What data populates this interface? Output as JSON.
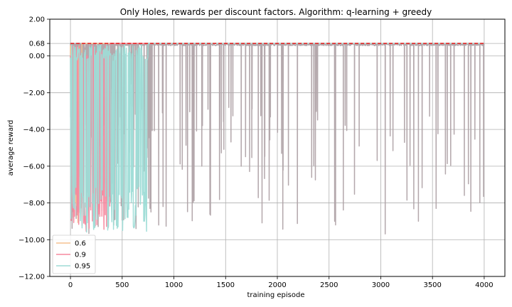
{
  "chart_data": {
    "type": "line",
    "title": "Only Holes, rewards per discount factors. Algorithm: q-learning + greedy",
    "xlabel": "training episode",
    "ylabel": "average reward",
    "xlim": [
      -200,
      4200
    ],
    "ylim": [
      -12.0,
      2.0
    ],
    "xticks": [
      0,
      500,
      1000,
      1500,
      2000,
      2500,
      3000,
      3500,
      4000
    ],
    "xtick_labels": [
      "0",
      "500",
      "1000",
      "1500",
      "2000",
      "2500",
      "3000",
      "3500",
      "4000"
    ],
    "yticks": [
      2.0,
      0.68,
      0.0,
      -2.0,
      -4.0,
      -6.0,
      -8.0,
      -10.0,
      -12.0
    ],
    "ytick_labels": [
      "2.00",
      "0.68",
      "0.00",
      "−2.00",
      "−4.00",
      "−6.00",
      "−8.00",
      "−10.00",
      "−12.00"
    ],
    "grid": true,
    "legend_position": "lower-left",
    "reference_line": {
      "y": 0.68,
      "x": [
        0,
        4000
      ],
      "color": "#e41a1c",
      "style": "dashed"
    },
    "series": [
      {
        "name": "0.6",
        "color": "#f5c28f",
        "converge_episode": 110,
        "final_value": 0.68
      },
      {
        "name": "0.9",
        "color": "#f5889e",
        "converge_episode": 380,
        "final_value": 0.68
      },
      {
        "name": "0.95",
        "color": "#9ddcd6",
        "converge_episode": 750,
        "final_value": 0.68
      },
      {
        "name": "",
        "color": "#b0a3a8",
        "converge_episode": 4000,
        "final_value": 0.68
      }
    ]
  }
}
